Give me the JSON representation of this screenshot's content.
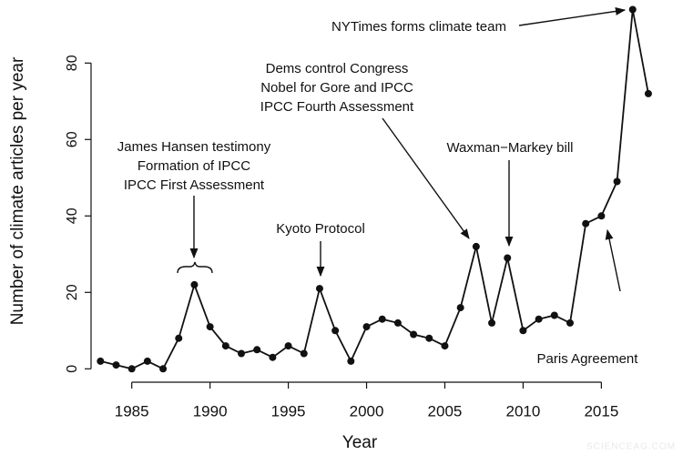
{
  "chart_data": {
    "type": "line",
    "x_label": "Year",
    "y_label": "Number of climate articles per year",
    "x": [
      1983,
      1984,
      1985,
      1986,
      1987,
      1988,
      1989,
      1990,
      1991,
      1992,
      1993,
      1994,
      1995,
      1996,
      1997,
      1998,
      1999,
      2000,
      2001,
      2002,
      2003,
      2004,
      2005,
      2006,
      2007,
      2008,
      2009,
      2010,
      2011,
      2012,
      2013,
      2014,
      2015,
      2016,
      2017,
      2018
    ],
    "series": [
      {
        "color": "#111111",
        "values": [
          2,
          1,
          0,
          2,
          0,
          8,
          22,
          11,
          6,
          4,
          5,
          3,
          6,
          4,
          21,
          10,
          2,
          11,
          13,
          12,
          9,
          8,
          6,
          16,
          32,
          12,
          29,
          10,
          13,
          14,
          12,
          38,
          40,
          49,
          94,
          72
        ]
      }
    ],
    "xlim": [
      1982.4,
      2019.4
    ],
    "xticks": [
      1985,
      1990,
      1995,
      2000,
      2005,
      2010,
      2015
    ],
    "ylim": [
      -3.5,
      96.5
    ],
    "yticks": [
      0,
      20,
      40,
      60,
      80
    ],
    "annotations": [
      [
        "James Hansen testimony",
        "Formation of IPCC",
        "IPCC First Assessment"
      ],
      [
        "Kyoto Protocol"
      ],
      [
        "Dems control Congress",
        "Nobel for Gore and IPCC",
        "IPCC Fourth Assessment"
      ],
      [
        "Waxman−Markey bill"
      ],
      [
        "NYTimes forms climate team"
      ],
      [
        "Paris Agreement"
      ]
    ],
    "watermark": "SCIENCEAG.COM"
  }
}
